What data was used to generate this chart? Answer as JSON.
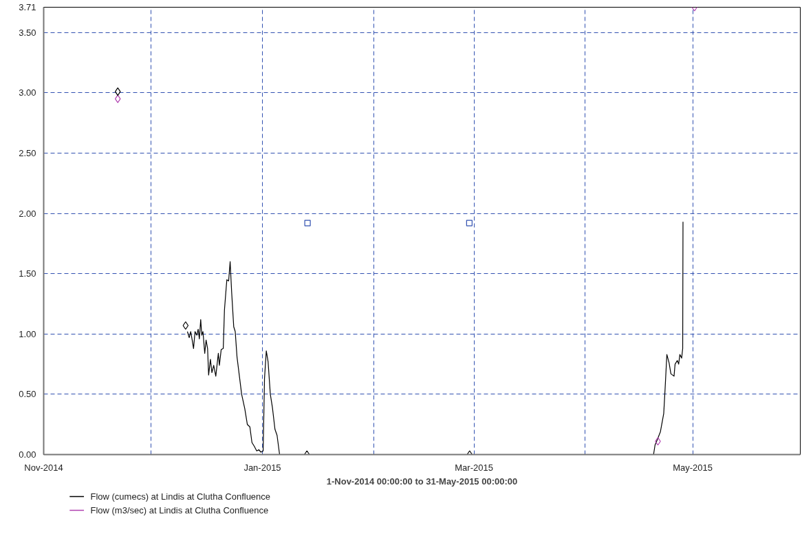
{
  "chart_data": {
    "type": "line",
    "xlabel": "1-Nov-2014 00:00:00 to 31-May-2015 00:00:00",
    "xlim": [
      "2014-11-01",
      "2015-05-31"
    ],
    "xticks": [
      {
        "value": "2014-11-01",
        "label": "Nov-2014"
      },
      {
        "value": "2014-12-01",
        "label": null
      },
      {
        "value": "2015-01-01",
        "label": "Jan-2015"
      },
      {
        "value": "2015-02-01",
        "label": null
      },
      {
        "value": "2015-03-01",
        "label": "Mar-2015"
      },
      {
        "value": "2015-04-01",
        "label": null
      },
      {
        "value": "2015-05-01",
        "label": "May-2015"
      }
    ],
    "ylim": [
      0,
      3.71
    ],
    "yticks": [
      {
        "value": 0,
        "label": "0.00"
      },
      {
        "value": 0.5,
        "label": "0.50"
      },
      {
        "value": 1,
        "label": "1.00"
      },
      {
        "value": 1.5,
        "label": "1.50"
      },
      {
        "value": 2,
        "label": "2.00"
      },
      {
        "value": 2.5,
        "label": "2.50"
      },
      {
        "value": 3,
        "label": "3.00"
      },
      {
        "value": 3.5,
        "label": "3.50"
      },
      3.71
    ],
    "grid": true,
    "legend": "bottom",
    "series": [
      {
        "name": "Flow (cumecs) at Lindis at Clutha Confluence",
        "line_style": "solid",
        "color": "#000000",
        "x": [
          "2014-12-11T02:00",
          "2014-12-11T14:00",
          "2014-12-12T00:00",
          "2014-12-12T10:00",
          "2014-12-12T19:00",
          "2014-12-13T05:00",
          "2014-12-13T17:00",
          "2014-12-14T02:00",
          "2014-12-14T10:00",
          "2014-12-14T19:00",
          "2014-12-15T02:00",
          "2014-12-15T10:00",
          "2014-12-15T22:00",
          "2014-12-16T07:00",
          "2014-12-16T17:00",
          "2014-12-17T00:00",
          "2014-12-17T12:00",
          "2014-12-17T22:00",
          "2014-12-18T10:00",
          "2014-12-19T00:00",
          "2014-12-19T17:00",
          "2014-12-20T00:00",
          "2014-12-20T12:00",
          "2014-12-21T02:00",
          "2014-12-21T10:00",
          "2014-12-21T22:00",
          "2014-12-22T02:00",
          "2014-12-22T14:00",
          "2014-12-23T00:00",
          "2014-12-23T10:00",
          "2014-12-24T00:00",
          "2014-12-24T10:00",
          "2014-12-24T22:00",
          "2014-12-25T07:00",
          "2014-12-26T05:00",
          "2014-12-27T02:00",
          "2014-12-27T19:00",
          "2014-12-28T12:00",
          "2014-12-29T02:00",
          "2014-12-29T17:00",
          "2014-12-30T10:00",
          "2014-12-31T00:00",
          "2014-12-31T14:00",
          "2015-01-01T05:00",
          "2015-01-01T14:00",
          "2015-01-02T02:00",
          "2015-01-02T14:00",
          "2015-01-03T05:00",
          "2015-01-03T19:00",
          "2015-01-04T12:00",
          "2015-01-05T02:00",
          "2015-01-05T19:00",
          "2015-04-20T02:00",
          "2015-04-20T12:00",
          "2015-04-21T02:00",
          "2015-04-22T00:00",
          "2015-04-22T22:00",
          "2015-04-23T07:00",
          "2015-04-23T19:00",
          "2015-04-24T10:00",
          "2015-04-24T22:00",
          "2015-04-25T19:00",
          "2015-04-26T02:00",
          "2015-04-26T17:00",
          "2015-04-27T02:00",
          "2015-04-27T10:00",
          "2015-04-27T22:00",
          "2015-04-28T05:00",
          "2015-04-28T07:00"
        ],
        "values": [
          1.02,
          0.97,
          1.02,
          0.95,
          0.88,
          1.02,
          0.99,
          1.04,
          0.96,
          1.12,
          0.99,
          1.02,
          0.84,
          0.95,
          0.88,
          0.66,
          0.79,
          0.68,
          0.74,
          0.65,
          0.84,
          0.74,
          0.87,
          0.88,
          1.2,
          1.39,
          1.45,
          1.44,
          1.6,
          1.35,
          1.06,
          1.02,
          0.81,
          0.72,
          0.5,
          0.38,
          0.25,
          0.23,
          0.1,
          0.07,
          0.03,
          0.04,
          0.02,
          0.03,
          0.63,
          0.86,
          0.77,
          0.5,
          0.39,
          0.21,
          0.16,
          0,
          0,
          0.08,
          0.12,
          0.19,
          0.34,
          0.54,
          0.83,
          0.76,
          0.67,
          0.65,
          0.75,
          0.78,
          0.75,
          0.83,
          0.8,
          0.88,
          1.93
        ]
      },
      {
        "name": "Flow (m3/sec) at Lindis at Clutha Confluence",
        "type": "scatter",
        "marker": "diamond",
        "color": "#b040b0",
        "x": [
          "2014-11-21T16:00",
          "2015-04-21T07:00",
          "2015-05-01T12:00"
        ],
        "values": [
          2.95,
          0.11,
          3.71
        ]
      },
      {
        "type": "scatter",
        "marker": "diamond",
        "color": "#000000",
        "x": [
          "2014-11-21T16:00",
          "2014-12-10T14:00",
          "2015-01-13T10:00",
          "2015-02-27T19:00"
        ],
        "values": [
          3.01,
          1.07,
          0,
          0
        ]
      },
      {
        "type": "scatter",
        "marker": "square",
        "color": "#3050b0",
        "x": [
          "2015-01-13T14:00",
          "2015-02-27T17:00"
        ],
        "values": [
          1.92,
          1.92
        ]
      }
    ]
  }
}
